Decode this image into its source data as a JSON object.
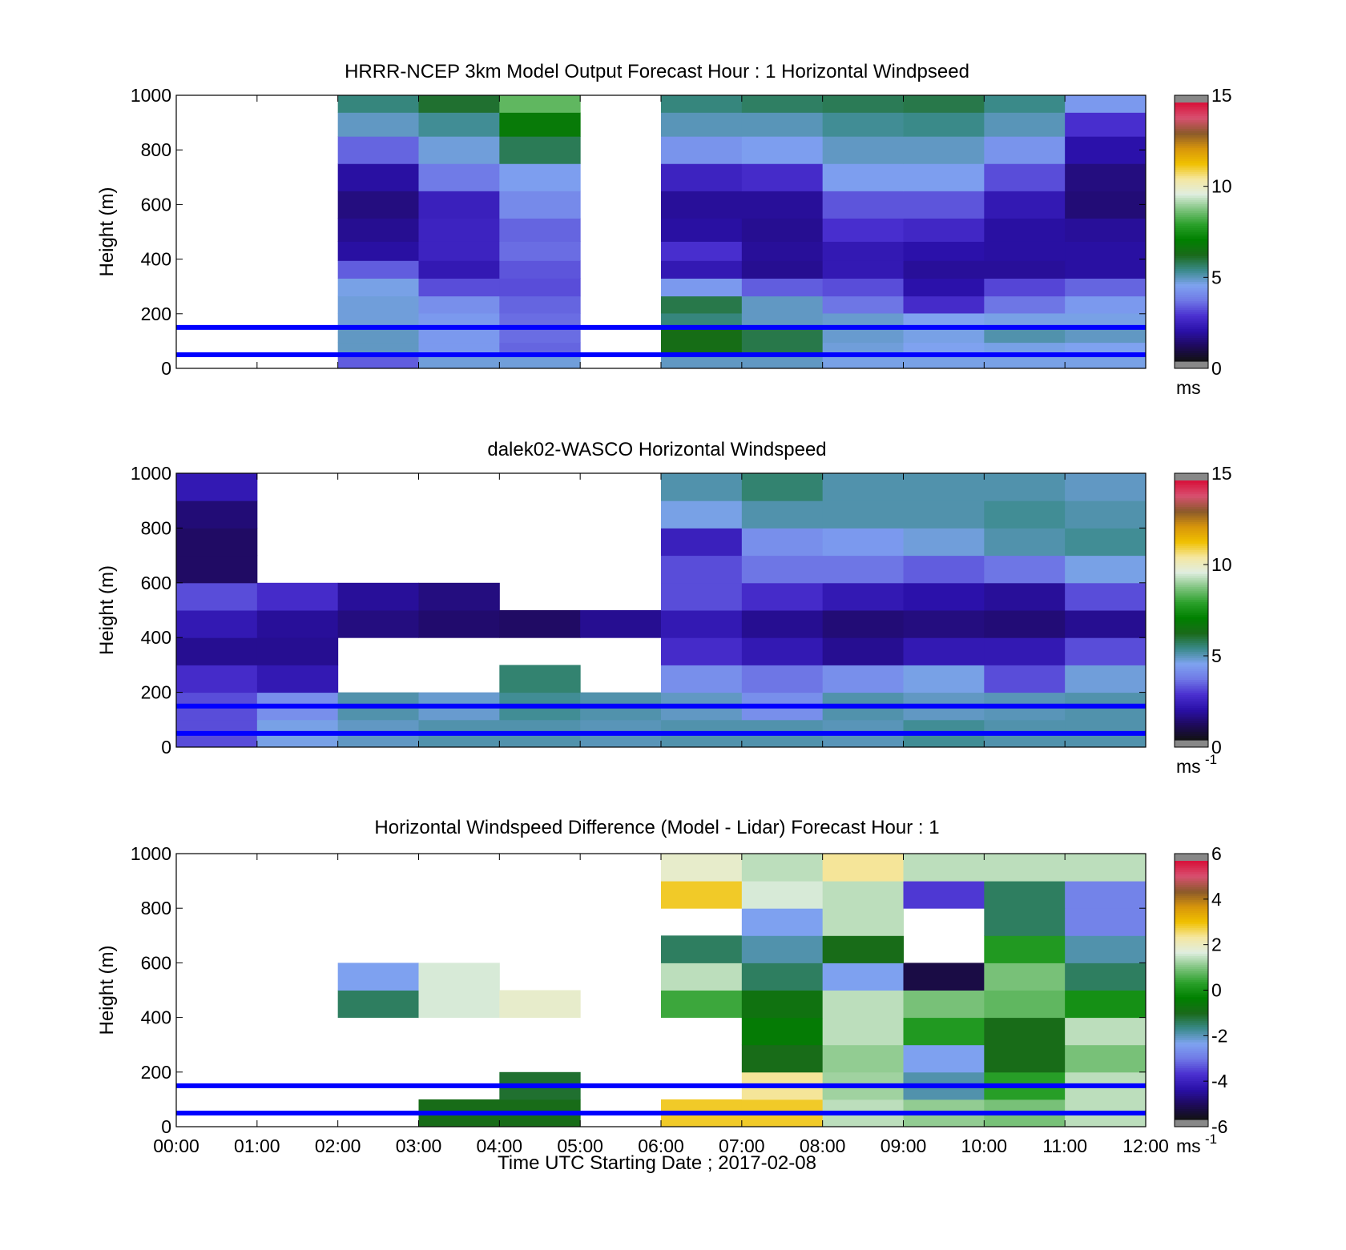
{
  "figure": {
    "xlabel": "Time UTC  Starting Date ; 2017-02-08",
    "x_ticks": [
      "00:00",
      "01:00",
      "02:00",
      "03:00",
      "04:00",
      "05:00",
      "06:00",
      "07:00",
      "08:00",
      "09:00",
      "10:00",
      "11:00",
      "12:00"
    ],
    "y_ticks": [
      "0",
      "200",
      "400",
      "600",
      "800",
      "1000"
    ]
  },
  "colors": {
    "reference_lines": "#0000ff",
    "missing": "#ffffff",
    "speed_colormap": [
      "#111111",
      "#1e0a5a",
      "#2a10a8",
      "#4a30d0",
      "#6f78e6",
      "#7fa3f0",
      "#3a8a8a",
      "#1a6a1a",
      "#008000",
      "#2aa02a",
      "#7fc47f",
      "#e0eee0",
      "#f5e7a0",
      "#f0c000",
      "#d7950b",
      "#8b5a2b",
      "#d85070",
      "#d8103a"
    ]
  },
  "chart_data": [
    {
      "type": "heatmap",
      "title": "HRRR-NCEP 3km Model Output   Forecast Hour : 1 Horizontal Windpseed",
      "ylabel": "Height (m)",
      "xlim": [
        "00:00",
        "12:00"
      ],
      "ylim": [
        0,
        1000
      ],
      "grid": false,
      "colorbar": {
        "min": 0,
        "max": 15,
        "ticks": [
          "0",
          "5",
          "10",
          "15"
        ],
        "unit": "ms"
      },
      "reference_lines_height_m": [
        50,
        150
      ],
      "time_columns": [
        "02:00",
        "03:00",
        "04:00",
        "06:00",
        "07:00",
        "08:00",
        "09:00",
        "10:00",
        "11:00"
      ],
      "missing_columns": [
        "00:00",
        "01:00",
        "05:00"
      ],
      "heights_m": [
        25,
        70,
        120,
        175,
        230,
        300,
        360,
        430,
        500,
        600,
        700,
        800,
        900,
        975
      ],
      "values_ms": [
        [
          3.2,
          4.6,
          4.6,
          4.8,
          4.8,
          4.5,
          4.5,
          4.5,
          4.5
        ],
        [
          4.8,
          4.2,
          3.3,
          6.3,
          5.8,
          4.6,
          4.4,
          4.5,
          4.4
        ],
        [
          4.8,
          4.2,
          3.4,
          6.3,
          5.8,
          4.7,
          4.5,
          5.0,
          4.8
        ],
        [
          4.6,
          4.2,
          3.4,
          5.4,
          4.8,
          4.7,
          4.4,
          4.5,
          4.5
        ],
        [
          4.6,
          4.0,
          3.3,
          5.8,
          4.8,
          3.5,
          2.5,
          3.5,
          4.2
        ],
        [
          4.5,
          3.0,
          3.0,
          4.2,
          3.2,
          3.0,
          1.8,
          2.9,
          3.3
        ],
        [
          3.2,
          2.0,
          3.1,
          2.0,
          1.5,
          2.0,
          1.6,
          1.6,
          1.7
        ],
        [
          1.7,
          2.3,
          3.4,
          2.6,
          1.6,
          2.0,
          1.8,
          1.7,
          1.7
        ],
        [
          1.5,
          2.3,
          3.3,
          1.7,
          1.5,
          2.6,
          2.4,
          1.7,
          1.6
        ],
        [
          1.3,
          2.2,
          3.9,
          1.6,
          1.6,
          3.1,
          3.1,
          2.0,
          1.2
        ],
        [
          1.7,
          3.6,
          4.3,
          2.3,
          2.5,
          4.3,
          4.3,
          3.0,
          1.3
        ],
        [
          3.3,
          4.6,
          5.7,
          4.1,
          4.3,
          4.8,
          4.8,
          4.1,
          1.8
        ],
        [
          4.8,
          5.2,
          6.8,
          4.9,
          4.9,
          5.2,
          5.3,
          4.9,
          2.6
        ],
        [
          5.4,
          6.0,
          8.5,
          5.4,
          5.6,
          5.7,
          5.8,
          5.3,
          4.2
        ]
      ]
    },
    {
      "type": "heatmap",
      "title": "dalek02-WASCO  Horizontal Windspeed",
      "ylabel": "Height (m)",
      "xlim": [
        "00:00",
        "12:00"
      ],
      "ylim": [
        0,
        1000
      ],
      "grid": false,
      "colorbar": {
        "min": 0,
        "max": 15,
        "ticks": [
          "0",
          "5",
          "10",
          "15"
        ],
        "unit": "ms",
        "unit_exponent": "-1"
      },
      "reference_lines_height_m": [
        50,
        150
      ],
      "time_columns": [
        "00:00",
        "01:00",
        "02:00",
        "03:00",
        "04:00",
        "05:00",
        "06:00",
        "07:00",
        "08:00",
        "09:00",
        "10:00",
        "11:00"
      ],
      "heights_m": [
        50,
        150,
        250,
        350,
        450,
        550,
        650,
        750,
        850,
        950
      ],
      "values_ms": [
        [
          3.0,
          4.5,
          4.8,
          5.0,
          5.0,
          4.9,
          5.0,
          5.0,
          4.9,
          5.2,
          5.0,
          5.0
        ],
        [
          3.0,
          4.0,
          5.0,
          4.7,
          5.2,
          5.0,
          4.8,
          4.0,
          5.0,
          4.8,
          4.9,
          5.0
        ],
        [
          2.5,
          2.0,
          null,
          null,
          5.5,
          null,
          4.0,
          3.5,
          4.0,
          4.5,
          3.0,
          4.6
        ],
        [
          1.5,
          1.5,
          null,
          null,
          null,
          null,
          2.5,
          2.0,
          1.5,
          2.0,
          2.0,
          3.0
        ],
        [
          2.0,
          1.6,
          1.3,
          1.1,
          1.0,
          1.5,
          2.0,
          1.5,
          1.2,
          1.3,
          1.2,
          1.5
        ],
        [
          3.0,
          2.5,
          1.6,
          1.3,
          null,
          null,
          3.0,
          2.5,
          2.0,
          1.8,
          1.6,
          3.0
        ],
        [
          1.0,
          null,
          null,
          null,
          null,
          null,
          3.0,
          3.5,
          3.5,
          3.2,
          3.5,
          4.5
        ],
        [
          1.0,
          null,
          null,
          null,
          null,
          null,
          2.2,
          4.0,
          4.2,
          4.6,
          5.0,
          5.2
        ],
        [
          1.2,
          null,
          null,
          null,
          null,
          null,
          4.5,
          5.0,
          5.0,
          5.0,
          5.2,
          5.0
        ],
        [
          2.0,
          null,
          null,
          null,
          null,
          null,
          5.0,
          5.5,
          5.0,
          5.0,
          5.0,
          4.8
        ]
      ]
    },
    {
      "type": "heatmap",
      "title": "Horizontal Windspeed Difference (Model - Lidar) Forecast Hour : 1",
      "ylabel": "Height (m)",
      "xlim": [
        "00:00",
        "12:00"
      ],
      "ylim": [
        0,
        1000
      ],
      "grid": false,
      "colorbar": {
        "min": -6,
        "max": 6,
        "ticks": [
          "-6",
          "-4",
          "-2",
          "0",
          "2",
          "4",
          "6"
        ],
        "unit": "ms",
        "unit_exponent": "-1"
      },
      "reference_lines_height_m": [
        50,
        150
      ],
      "time_columns": [
        "02:00",
        "03:00",
        "04:00",
        "06:00",
        "07:00",
        "08:00",
        "09:00",
        "10:00",
        "11:00"
      ],
      "heights_m": [
        50,
        150,
        250,
        350,
        450,
        550,
        650,
        750,
        850,
        950
      ],
      "values_ms": [
        [
          null,
          -1.0,
          -1.0,
          3.0,
          3.0,
          1.5,
          1.2,
          1.0,
          1.5
        ],
        [
          null,
          null,
          -1.2,
          null,
          2.5,
          1.3,
          -2.0,
          0.3,
          1.5
        ],
        [
          null,
          null,
          null,
          null,
          -1.0,
          1.2,
          -2.5,
          -1.0,
          1.0
        ],
        [
          null,
          null,
          null,
          null,
          -0.5,
          1.5,
          0.2,
          -1.0,
          1.5
        ],
        [
          -1.5,
          1.7,
          2.0,
          0.5,
          -0.8,
          1.5,
          1.0,
          0.8,
          0.0
        ],
        [
          -2.5,
          1.7,
          null,
          1.5,
          -1.5,
          -2.5,
          -5.5,
          1.0,
          -1.5
        ],
        [
          null,
          null,
          null,
          -1.5,
          -2.0,
          -1.0,
          null,
          0.2,
          -2.0
        ],
        [
          null,
          null,
          null,
          null,
          -2.5,
          1.5,
          null,
          -1.5,
          -3.0
        ],
        [
          null,
          null,
          null,
          3.0,
          1.7,
          1.5,
          -3.8,
          -1.5,
          -3.0
        ],
        [
          null,
          null,
          null,
          2.0,
          1.5,
          2.5,
          1.5,
          1.5,
          1.5
        ]
      ]
    }
  ]
}
